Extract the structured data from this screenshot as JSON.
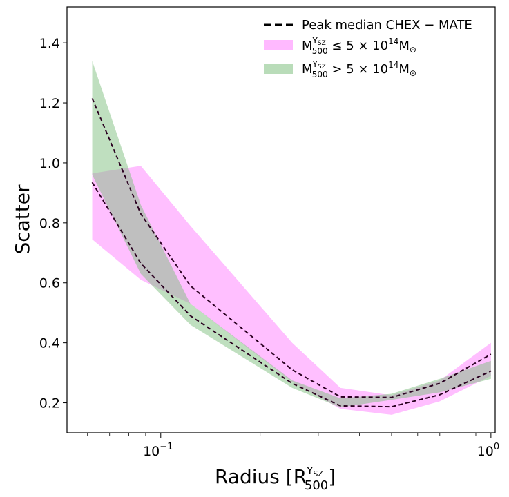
{
  "chart_data": {
    "type": "area",
    "xscale": "log",
    "xlim": [
      0.052,
      1.03
    ],
    "ylim": [
      0.1,
      1.52
    ],
    "xlabel": "Radius [R",
    "xlabel_sup": "Y",
    "xlabel_sup_sub": "SZ",
    "xlabel_sub": "500",
    "xlabel_close": "]",
    "ylabel": "Scatter",
    "x_ticks": [
      {
        "value": 0.1,
        "base": "10",
        "exp": "−1"
      },
      {
        "value": 1.0,
        "base": "10",
        "exp": "0"
      }
    ],
    "y_ticks": [
      {
        "value": 0.2,
        "label": "0.2"
      },
      {
        "value": 0.4,
        "label": "0.4"
      },
      {
        "value": 0.6,
        "label": "0.6"
      },
      {
        "value": 0.8,
        "label": "0.8"
      },
      {
        "value": 1.0,
        "label": "1.0"
      },
      {
        "value": 1.2,
        "label": "1.2"
      },
      {
        "value": 1.4,
        "label": "1.4"
      }
    ],
    "x": [
      0.062,
      0.087,
      0.123,
      0.25,
      0.35,
      0.5,
      0.7,
      1.0
    ],
    "series": [
      {
        "name": "low_mass_band",
        "color": "#ff80ff",
        "opacity": 0.5,
        "lower": [
          0.745,
          0.61,
          0.53,
          0.27,
          0.18,
          0.16,
          0.205,
          0.29
        ],
        "upper": [
          0.965,
          0.99,
          0.79,
          0.4,
          0.25,
          0.225,
          0.275,
          0.4
        ]
      },
      {
        "name": "high_mass_band",
        "color": "#7fc07f",
        "opacity": 0.5,
        "lower": [
          0.96,
          0.63,
          0.46,
          0.25,
          0.185,
          0.21,
          0.235,
          0.28
        ],
        "upper": [
          1.34,
          0.86,
          0.53,
          0.275,
          0.215,
          0.23,
          0.28,
          0.34
        ]
      },
      {
        "name": "low_mass_median_upper",
        "style": "dashed",
        "color": "#2a0020",
        "values": [
          1.215,
          0.83,
          0.59,
          0.31,
          0.22,
          0.218,
          0.265,
          0.362
        ]
      },
      {
        "name": "low_mass_median_lower",
        "style": "dashed",
        "color": "#2a0020",
        "values": [
          0.935,
          0.665,
          0.49,
          0.265,
          0.19,
          0.187,
          0.227,
          0.306
        ]
      }
    ],
    "legend": {
      "placement": "top-right",
      "entries": [
        {
          "type": "line",
          "color": "#000000",
          "label": "Peak median CHEX − MATE"
        },
        {
          "type": "patch",
          "color": "#ff80ff",
          "opacity": 0.55,
          "prefix": "M",
          "sup": "Y",
          "supsub": "SZ",
          "sub": "500",
          "suffix": " ≤ 5 × 10",
          "exp": "14",
          "unit": "M",
          "unitsub": "⊙"
        },
        {
          "type": "patch",
          "color": "#7fc07f",
          "opacity": 0.55,
          "prefix": "M",
          "sup": "Y",
          "supsub": "SZ",
          "sub": "500",
          "suffix": " > 5 × 10",
          "exp": "14",
          "unit": "M",
          "unitsub": "⊙"
        }
      ]
    }
  }
}
